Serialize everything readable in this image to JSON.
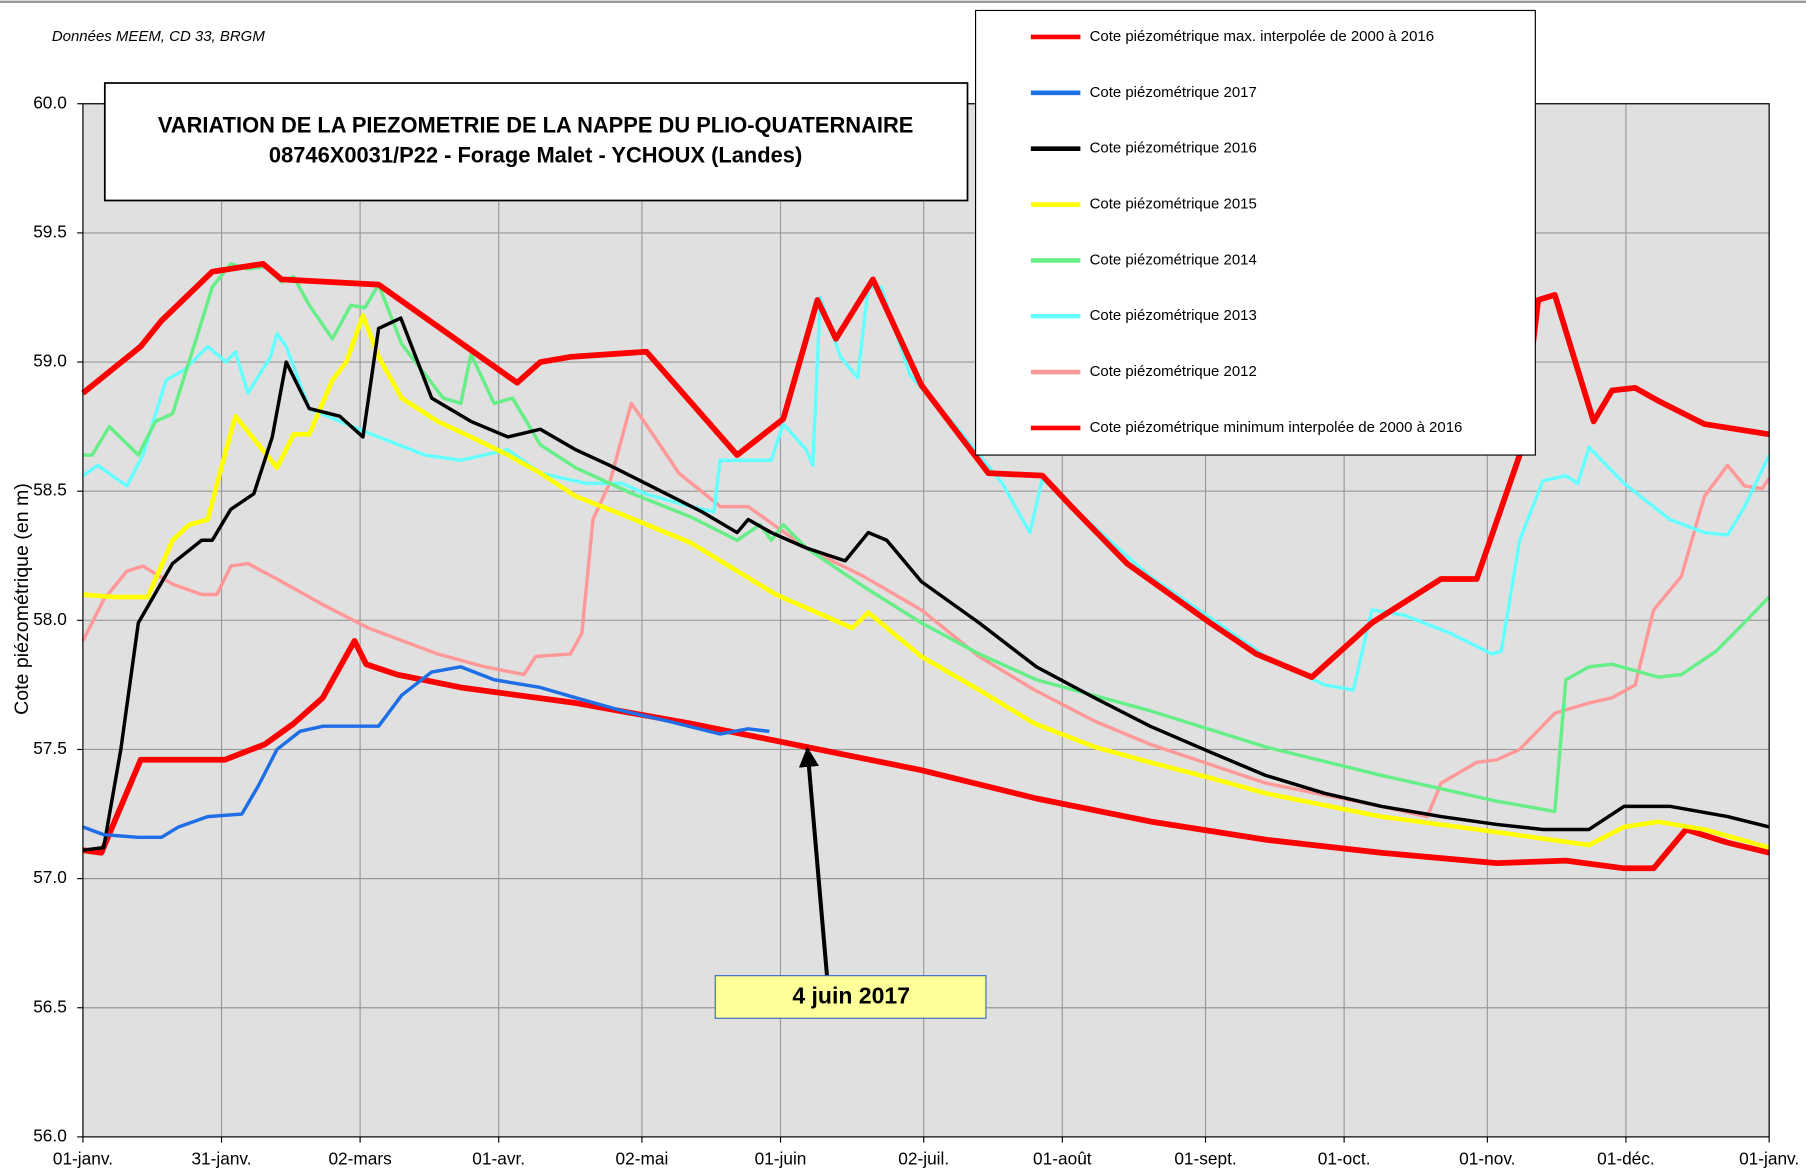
{
  "chart_data": {
    "type": "line",
    "note": "Données MEEM, CD 33, BRGM",
    "title": [
      "VARIATION DE LA PIEZOMETRIE DE LA NAPPE DU PLIO-QUATERNAIRE",
      "08746X0031/P22  - Forage Malet - YCHOUX (Landes)"
    ],
    "y_label": "Cote piézométrique (en m)",
    "annotation": "4 juin 2017",
    "xlim": [
      0,
      365
    ],
    "xticks": [
      {
        "value": 0,
        "label": "01-janv."
      },
      {
        "value": 30,
        "label": "31-janv."
      },
      {
        "value": 60,
        "label": "02-mars"
      },
      {
        "value": 90,
        "label": "01-avr."
      },
      {
        "value": 121,
        "label": "02-mai"
      },
      {
        "value": 151,
        "label": "01-juin"
      },
      {
        "value": 182,
        "label": "02-juil."
      },
      {
        "value": 212,
        "label": "01-août"
      },
      {
        "value": 243,
        "label": "01-sept."
      },
      {
        "value": 273,
        "label": "01-oct."
      },
      {
        "value": 304,
        "label": "01-nov."
      },
      {
        "value": 334,
        "label": "01-déc."
      },
      {
        "value": 365,
        "label": "01-janv."
      }
    ],
    "ylim": [
      56,
      60
    ],
    "yticks": [
      {
        "value": 56,
        "label": "56.0"
      },
      {
        "value": 56.5,
        "label": "56.5"
      },
      {
        "value": 57,
        "label": "57.0"
      },
      {
        "value": 57.5,
        "label": "57.5"
      },
      {
        "value": 58,
        "label": "58.0"
      },
      {
        "value": 58.5,
        "label": "58.5"
      },
      {
        "value": 59,
        "label": "59.0"
      },
      {
        "value": 59.5,
        "label": "59.5"
      },
      {
        "value": 60,
        "label": "60.0"
      }
    ],
    "grid": true,
    "series": [
      {
        "name": "Cote piézométrique max. interpolée de 2000 à 2016",
        "color": "#ff0000",
        "x": [
          0,
          12.5,
          17,
          28,
          39,
          43,
          64,
          94,
          99,
          105.5,
          122,
          141.6,
          151.6,
          159,
          163,
          171,
          181.5,
          196,
          207.7,
          214,
          226,
          244,
          254,
          266,
          279,
          294,
          301.7,
          311,
          315,
          318.6,
          327,
          331,
          336,
          341,
          351,
          365
        ],
        "values": [
          58.88,
          59.06,
          59.16,
          59.35,
          59.38,
          59.32,
          59.3,
          58.92,
          59.0,
          59.02,
          59.04,
          58.64,
          58.78,
          59.24,
          59.09,
          59.32,
          58.91,
          58.57,
          58.56,
          58.44,
          58.22,
          57.99,
          57.87,
          57.78,
          57.99,
          58.16,
          58.16,
          58.64,
          59.24,
          59.26,
          58.77,
          58.89,
          58.9,
          58.85,
          58.76,
          58.72
        ]
      },
      {
        "name": "Cote piézométrique 2017",
        "color": "#1e6ee6",
        "x": [
          0,
          4.5,
          12,
          17,
          20.7,
          27,
          34.4,
          38,
          42,
          47,
          52,
          59,
          64,
          69,
          75.5,
          81.8,
          89,
          99,
          106.7,
          116.7,
          126.6,
          137.9,
          144,
          148.6
        ],
        "values": [
          57.2,
          57.17,
          57.16,
          57.16,
          57.2,
          57.24,
          57.25,
          57.36,
          57.5,
          57.57,
          57.59,
          57.59,
          57.59,
          57.71,
          57.8,
          57.82,
          57.77,
          57.74,
          57.7,
          57.65,
          57.61,
          57.56,
          57.58,
          57.57
        ]
      },
      {
        "name": "Cote piézométrique 2016",
        "color": "#000000",
        "x": [
          0,
          4.5,
          8.2,
          12,
          19.4,
          25.7,
          28,
          32,
          37,
          41,
          44,
          49,
          55.6,
          60.6,
          64,
          68.8,
          75.5,
          84,
          92,
          99,
          106.7,
          114,
          124,
          134,
          141.6,
          144,
          149,
          156.6,
          165,
          170,
          174,
          181.5,
          194,
          206.4,
          219,
          231,
          244,
          256,
          268.8,
          281,
          294,
          306,
          316,
          326,
          333.6,
          343.5,
          356,
          365
        ],
        "values": [
          57.11,
          57.12,
          57.5,
          57.99,
          58.22,
          58.31,
          58.31,
          58.43,
          58.49,
          58.71,
          59.0,
          58.82,
          58.79,
          58.71,
          59.13,
          59.17,
          58.86,
          58.77,
          58.71,
          58.74,
          58.66,
          58.6,
          58.51,
          58.42,
          58.34,
          58.39,
          58.34,
          58.28,
          58.23,
          58.34,
          58.31,
          58.15,
          57.99,
          57.82,
          57.7,
          57.59,
          57.49,
          57.4,
          57.33,
          57.28,
          57.24,
          57.21,
          57.19,
          57.19,
          57.28,
          57.28,
          57.24,
          57.2
        ]
      },
      {
        "name": "Cote piézométrique 2015",
        "color": "#ffff00",
        "x": [
          0,
          7,
          14,
          19.4,
          23,
          27,
          30.7,
          33,
          38,
          42,
          45.6,
          49,
          54,
          57,
          60.6,
          64,
          69,
          76.8,
          84,
          92,
          99,
          106.7,
          116.7,
          131.6,
          150,
          166.5,
          170,
          181.5,
          194,
          206,
          219,
          231,
          244,
          256,
          281,
          306,
          326,
          333.6,
          341,
          351,
          365
        ],
        "values": [
          58.1,
          58.09,
          58.09,
          58.31,
          58.37,
          58.39,
          58.64,
          58.79,
          58.68,
          58.59,
          58.72,
          58.72,
          58.93,
          59.0,
          59.18,
          59.02,
          58.86,
          58.77,
          58.71,
          58.64,
          58.57,
          58.48,
          58.41,
          58.3,
          58.1,
          57.97,
          58.03,
          57.86,
          57.73,
          57.6,
          57.51,
          57.45,
          57.39,
          57.33,
          57.24,
          57.18,
          57.13,
          57.2,
          57.22,
          57.19,
          57.12
        ]
      },
      {
        "name": "Cote piézométrique 2014",
        "color": "#66ee88",
        "x": [
          0,
          2,
          5.7,
          12,
          15.7,
          19.4,
          24,
          28,
          32,
          35.7,
          39.4,
          43,
          45.6,
          49,
          54,
          58,
          61,
          64,
          69,
          78,
          81.8,
          84,
          89,
          93,
          99,
          106.7,
          119,
          131.6,
          141.6,
          146.6,
          149,
          151.6,
          156.6,
          169,
          181.5,
          194,
          206.4,
          231,
          256,
          281,
          306,
          318.6,
          321,
          326,
          331,
          341,
          346,
          353.5,
          358.5,
          365
        ],
        "values": [
          58.64,
          58.64,
          58.75,
          58.64,
          58.77,
          58.8,
          59.06,
          59.29,
          59.38,
          59.36,
          59.37,
          59.31,
          59.33,
          59.22,
          59.09,
          59.22,
          59.21,
          59.3,
          59.07,
          58.86,
          58.84,
          59.03,
          58.84,
          58.86,
          58.68,
          58.59,
          58.49,
          58.4,
          58.31,
          58.37,
          58.31,
          58.37,
          58.28,
          58.13,
          57.99,
          57.87,
          57.77,
          57.65,
          57.51,
          57.4,
          57.3,
          57.26,
          57.77,
          57.82,
          57.83,
          57.78,
          57.79,
          57.88,
          57.97,
          58.09
        ]
      },
      {
        "name": "Cote piézométrique 2013",
        "color": "#66ffff",
        "x": [
          0,
          3.2,
          9.5,
          13,
          18,
          22,
          27,
          31,
          33,
          35.7,
          40.6,
          42,
          44,
          49,
          57,
          64,
          74,
          81.8,
          92,
          99,
          109,
          116.7,
          121.7,
          131.6,
          136.6,
          137.9,
          144,
          149,
          151.6,
          156.6,
          158,
          159.6,
          164,
          167.7,
          170,
          172.8,
          179,
          189,
          199,
          205,
          207.7,
          214,
          231,
          244,
          256,
          268.8,
          275,
          279,
          286,
          296,
          305,
          307,
          311,
          316,
          321,
          323.6,
          326,
          333.6,
          343.5,
          351,
          356,
          359.7,
          365
        ],
        "values": [
          58.56,
          58.6,
          58.52,
          58.64,
          58.93,
          58.97,
          59.06,
          59.0,
          59.04,
          58.88,
          59.02,
          59.11,
          59.06,
          58.82,
          58.76,
          58.71,
          58.64,
          58.62,
          58.66,
          58.57,
          58.53,
          58.53,
          58.49,
          58.44,
          58.42,
          58.62,
          58.62,
          58.62,
          58.76,
          58.66,
          58.6,
          59.25,
          59.02,
          58.94,
          59.29,
          59.29,
          58.95,
          58.75,
          58.53,
          58.34,
          58.55,
          58.44,
          58.17,
          58.01,
          57.86,
          57.75,
          57.73,
          58.04,
          58.02,
          57.95,
          57.87,
          57.88,
          58.31,
          58.54,
          58.56,
          58.53,
          58.67,
          58.53,
          58.39,
          58.34,
          58.33,
          58.44,
          58.64
        ]
      },
      {
        "name": "Cote piézométrique 2012",
        "color": "#ff9999",
        "x": [
          0,
          4.5,
          9.5,
          13,
          19.4,
          25.7,
          29,
          32,
          35.7,
          42,
          52,
          61.8,
          76.8,
          87,
          95.5,
          98,
          105.5,
          108,
          110.4,
          114,
          118.7,
          123,
          129,
          138,
          144,
          156.6,
          169,
          181.5,
          194,
          206,
          219,
          231,
          256,
          281,
          291,
          294,
          301.7,
          306,
          311,
          318.6,
          326,
          331,
          336,
          340,
          346,
          351,
          356,
          359.7,
          363.5,
          365
        ],
        "values": [
          57.92,
          58.08,
          58.19,
          58.21,
          58.14,
          58.1,
          58.1,
          58.21,
          58.22,
          58.16,
          58.06,
          57.97,
          57.87,
          57.82,
          57.79,
          57.86,
          57.87,
          57.95,
          58.39,
          58.53,
          58.84,
          58.73,
          58.57,
          58.44,
          58.44,
          58.28,
          58.17,
          58.04,
          57.86,
          57.73,
          57.61,
          57.52,
          57.37,
          57.28,
          57.24,
          57.37,
          57.45,
          57.46,
          57.5,
          57.64,
          57.68,
          57.7,
          57.75,
          58.04,
          58.17,
          58.48,
          58.6,
          58.52,
          58.51,
          58.55
        ]
      },
      {
        "name": "Cote piézométrique minimum interpolée de 2000 à 2016",
        "color": "#ff0000",
        "x": [
          0,
          4,
          12.5,
          30.7,
          39.4,
          45.6,
          51.9,
          58.8,
          61.3,
          68,
          81.8,
          106.7,
          131.6,
          156.6,
          181.5,
          206.4,
          231.4,
          256.3,
          281,
          306,
          321,
          333.6,
          340,
          347,
          355.9,
          365
        ],
        "values": [
          57.11,
          57.1,
          57.46,
          57.46,
          57.52,
          57.6,
          57.7,
          57.92,
          57.83,
          57.79,
          57.74,
          57.68,
          57.6,
          57.51,
          57.42,
          57.31,
          57.22,
          57.15,
          57.1,
          57.06,
          57.07,
          57.04,
          57.04,
          57.19,
          57.14,
          57.1
        ]
      }
    ]
  }
}
